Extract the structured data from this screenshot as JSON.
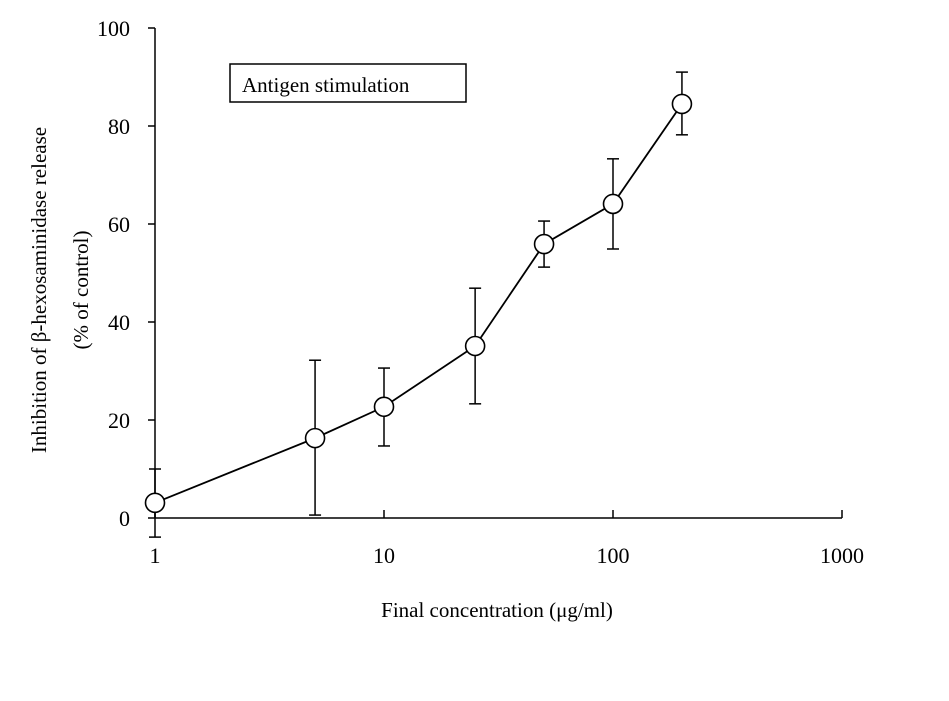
{
  "chart_data": {
    "type": "line",
    "title": "",
    "legend": {
      "label": "Antigen stimulation",
      "placement": "top-left"
    },
    "xlabel": "Final concentration (μg/ml)",
    "ylabel_line1": "Inhibition of β-hexosaminidase release",
    "ylabel_line2": "(% of control)",
    "xscale": "log",
    "xlim": [
      1,
      1000
    ],
    "ylim": [
      0,
      100
    ],
    "xticks": [
      1,
      10,
      100,
      1000
    ],
    "xtick_labels": [
      "1",
      "10",
      "100",
      "1000"
    ],
    "yticks": [
      0,
      20,
      40,
      60,
      80,
      100
    ],
    "ytick_labels": [
      "0",
      "20",
      "40",
      "60",
      "80",
      "100"
    ],
    "grid": false,
    "series": [
      {
        "name": "Antigen stimulation",
        "x": [
          1,
          5,
          10,
          25,
          50,
          100,
          200
        ],
        "y": [
          3.1,
          16.3,
          22.7,
          35.1,
          55.9,
          64.1,
          84.5
        ],
        "error_upper": [
          10.0,
          32.2,
          30.6,
          46.9,
          60.6,
          73.3,
          91.0
        ],
        "error_lower": [
          -3.9,
          0.6,
          14.7,
          23.3,
          51.2,
          54.9,
          78.2
        ]
      }
    ]
  }
}
